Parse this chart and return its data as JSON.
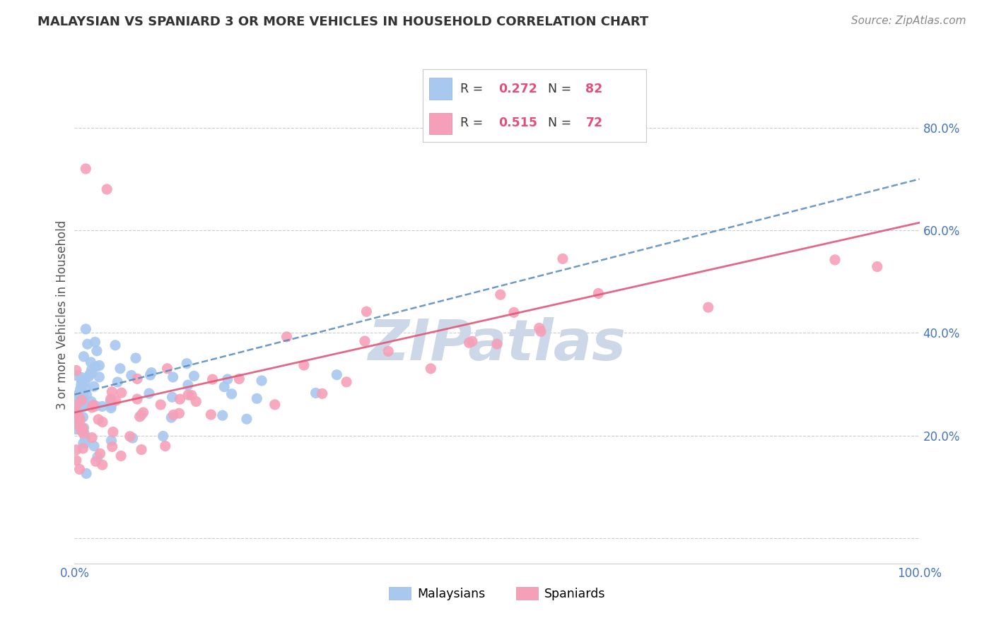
{
  "title": "MALAYSIAN VS SPANIARD 3 OR MORE VEHICLES IN HOUSEHOLD CORRELATION CHART",
  "source": "Source: ZipAtlas.com",
  "ylabel": "3 or more Vehicles in Household",
  "xlim": [
    0.0,
    1.0
  ],
  "ylim": [
    -0.05,
    0.92
  ],
  "malaysian_R": 0.272,
  "malaysian_N": 82,
  "spaniard_R": 0.515,
  "spaniard_N": 72,
  "malaysian_color": "#a8c8f0",
  "spaniard_color": "#f5a0b8",
  "malaysian_line_color": "#5588bb",
  "spaniard_line_color": "#e05878",
  "watermark": "ZIPatlas",
  "watermark_color": "#ccd8e8",
  "background_color": "#ffffff",
  "grid_color": "#cccccc",
  "title_color": "#333333",
  "source_color": "#888888",
  "tick_color": "#4472c4",
  "ylabel_color": "#555555",
  "legend_text_color": "#333333",
  "legend_value_color": "#e0507a",
  "marker_size": 120
}
